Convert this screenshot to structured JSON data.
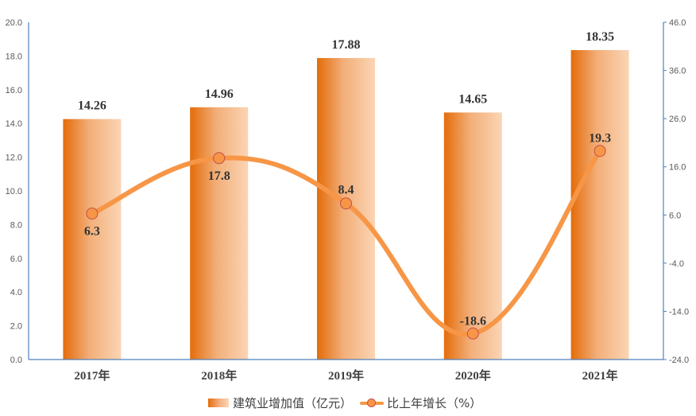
{
  "chart_data": {
    "type": "bar+line",
    "title": "",
    "categories": [
      "2017年",
      "2018年",
      "2019年",
      "2020年",
      "2021年"
    ],
    "series": [
      {
        "name": "建筑业增加值（亿元）",
        "type": "bar",
        "axis": "left",
        "values": [
          14.26,
          14.96,
          17.88,
          14.65,
          18.35
        ],
        "labels": [
          "14.26",
          "14.96",
          "17.88",
          "14.65",
          "18.35"
        ],
        "color": "#e46c0a"
      },
      {
        "name": "比上年增长（%）",
        "type": "line",
        "axis": "right",
        "smooth": true,
        "values": [
          6.3,
          17.8,
          8.4,
          -18.6,
          19.3
        ],
        "labels": [
          "6.3",
          "17.8",
          "8.4",
          "-18.6",
          "19.3"
        ],
        "color": "#f79646"
      }
    ],
    "left_axis": {
      "ylim": [
        0,
        20
      ],
      "ticks": [
        "0.0",
        "2.0",
        "4.0",
        "6.0",
        "8.0",
        "10.0",
        "12.0",
        "14.0",
        "16.0",
        "18.0",
        "20.0"
      ]
    },
    "right_axis": {
      "ylim": [
        -24,
        46
      ],
      "ticks": [
        "-24.0",
        "-14.0",
        "-4.0",
        "6.0",
        "16.0",
        "26.0",
        "36.0",
        "46.0"
      ]
    },
    "xlabel": "",
    "ylabel": "",
    "grid": false,
    "legend_position": "bottom"
  },
  "legend": {
    "bar_label": "建筑业增加值（亿元）",
    "line_label": "比上年增长（%）"
  }
}
